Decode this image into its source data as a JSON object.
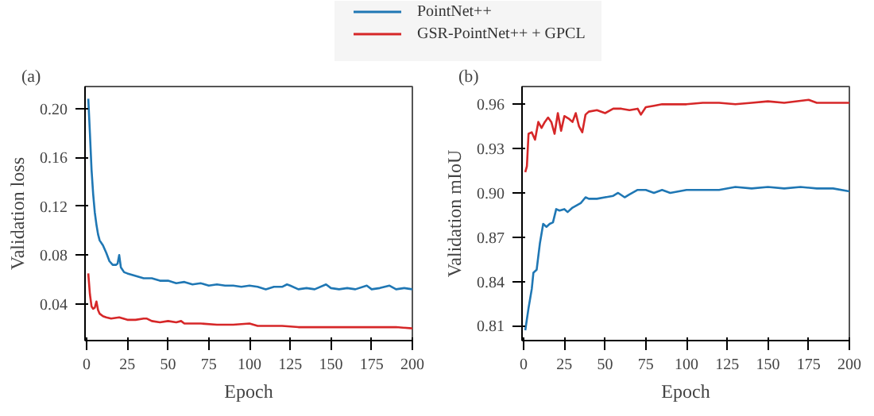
{
  "chart_data": [
    {
      "type": "line",
      "title": "(a)",
      "xlabel": "Epoch",
      "ylabel": "Validation loss",
      "xlim": [
        -1,
        200
      ],
      "ylim": [
        0.01,
        0.218
      ],
      "xticks": [
        0,
        25,
        50,
        75,
        100,
        125,
        150,
        175,
        200
      ],
      "yticks": [
        {
          "value": 0.04,
          "label": "0.04"
        },
        {
          "value": 0.08,
          "label": "0.08"
        },
        {
          "value": 0.12,
          "label": "0.12"
        },
        {
          "value": 0.16,
          "label": "0.16"
        },
        {
          "value": 0.2,
          "label": "0.20"
        }
      ],
      "grid": false,
      "legend": "top",
      "series": [
        {
          "name": "PointNet++",
          "color": "#1f77b4",
          "x": [
            1,
            2,
            3,
            4,
            5,
            6,
            7,
            8,
            10,
            12,
            14,
            16,
            18,
            19,
            20,
            21,
            23,
            25,
            30,
            35,
            40,
            45,
            50,
            55,
            60,
            65,
            70,
            75,
            80,
            85,
            90,
            95,
            100,
            105,
            110,
            115,
            120,
            123,
            125,
            130,
            135,
            140,
            147,
            150,
            155,
            160,
            165,
            172,
            175,
            180,
            186,
            190,
            195,
            200
          ],
          "values": [
            0.208,
            0.18,
            0.15,
            0.13,
            0.115,
            0.105,
            0.097,
            0.092,
            0.088,
            0.082,
            0.075,
            0.072,
            0.072,
            0.073,
            0.08,
            0.07,
            0.066,
            0.065,
            0.063,
            0.061,
            0.061,
            0.059,
            0.059,
            0.057,
            0.058,
            0.056,
            0.057,
            0.055,
            0.056,
            0.055,
            0.055,
            0.054,
            0.055,
            0.054,
            0.052,
            0.054,
            0.054,
            0.056,
            0.055,
            0.052,
            0.053,
            0.052,
            0.056,
            0.053,
            0.052,
            0.053,
            0.052,
            0.055,
            0.052,
            0.053,
            0.055,
            0.052,
            0.053,
            0.052
          ]
        },
        {
          "name": "GSR-PointNet++ + GPCL",
          "color": "#d62728",
          "x": [
            1,
            2,
            3,
            4,
            5,
            6,
            7,
            8,
            10,
            12,
            15,
            20,
            25,
            30,
            35,
            37,
            40,
            45,
            50,
            55,
            58,
            60,
            70,
            80,
            90,
            100,
            105,
            110,
            120,
            130,
            140,
            150,
            160,
            170,
            180,
            190,
            200
          ],
          "values": [
            0.065,
            0.048,
            0.038,
            0.036,
            0.037,
            0.042,
            0.035,
            0.032,
            0.03,
            0.029,
            0.028,
            0.029,
            0.027,
            0.027,
            0.028,
            0.028,
            0.026,
            0.025,
            0.026,
            0.025,
            0.026,
            0.024,
            0.024,
            0.023,
            0.023,
            0.024,
            0.022,
            0.022,
            0.022,
            0.021,
            0.021,
            0.021,
            0.021,
            0.021,
            0.021,
            0.021,
            0.02
          ]
        }
      ]
    },
    {
      "type": "line",
      "title": "(b)",
      "xlabel": "Epoch",
      "ylabel": "Validation mIoU",
      "xlim": [
        -1,
        200
      ],
      "ylim": [
        0.8,
        0.972
      ],
      "xticks": [
        0,
        25,
        50,
        75,
        100,
        125,
        150,
        175,
        200
      ],
      "yticks": [
        0.81,
        0.84,
        0.87,
        {
          "value": 0.9,
          "label": "0.90"
        },
        0.93,
        0.96
      ],
      "grid": false,
      "series": [
        {
          "color": "#1f77b4",
          "x": [
            1,
            3,
            5,
            6,
            8,
            10,
            12,
            14,
            16,
            18,
            20,
            22,
            25,
            27,
            30,
            35,
            38,
            40,
            45,
            50,
            55,
            58,
            62,
            65,
            70,
            75,
            80,
            85,
            90,
            100,
            110,
            120,
            130,
            140,
            150,
            160,
            170,
            180,
            190,
            200
          ],
          "values": [
            0.807,
            0.822,
            0.835,
            0.846,
            0.848,
            0.866,
            0.879,
            0.877,
            0.879,
            0.88,
            0.889,
            0.888,
            0.889,
            0.887,
            0.89,
            0.893,
            0.897,
            0.896,
            0.896,
            0.897,
            0.898,
            0.9,
            0.897,
            0.899,
            0.902,
            0.902,
            0.9,
            0.902,
            0.9,
            0.902,
            0.902,
            0.902,
            0.904,
            0.903,
            0.904,
            0.903,
            0.904,
            0.903,
            0.903,
            0.901
          ]
        },
        {
          "color": "#d62728",
          "x": [
            1,
            2,
            3,
            5,
            7,
            9,
            11,
            13,
            15,
            17,
            19,
            21,
            23,
            25,
            28,
            30,
            32,
            34,
            36,
            38,
            40,
            45,
            50,
            55,
            60,
            65,
            70,
            72,
            75,
            80,
            85,
            90,
            100,
            110,
            120,
            130,
            140,
            150,
            160,
            175,
            180,
            190,
            200
          ],
          "values": [
            0.914,
            0.918,
            0.94,
            0.941,
            0.936,
            0.948,
            0.944,
            0.948,
            0.951,
            0.948,
            0.94,
            0.954,
            0.942,
            0.952,
            0.95,
            0.948,
            0.954,
            0.945,
            0.941,
            0.953,
            0.955,
            0.956,
            0.954,
            0.957,
            0.957,
            0.956,
            0.957,
            0.953,
            0.958,
            0.959,
            0.96,
            0.96,
            0.96,
            0.961,
            0.961,
            0.96,
            0.961,
            0.962,
            0.961,
            0.963,
            0.961,
            0.961,
            0.961
          ]
        }
      ]
    }
  ]
}
